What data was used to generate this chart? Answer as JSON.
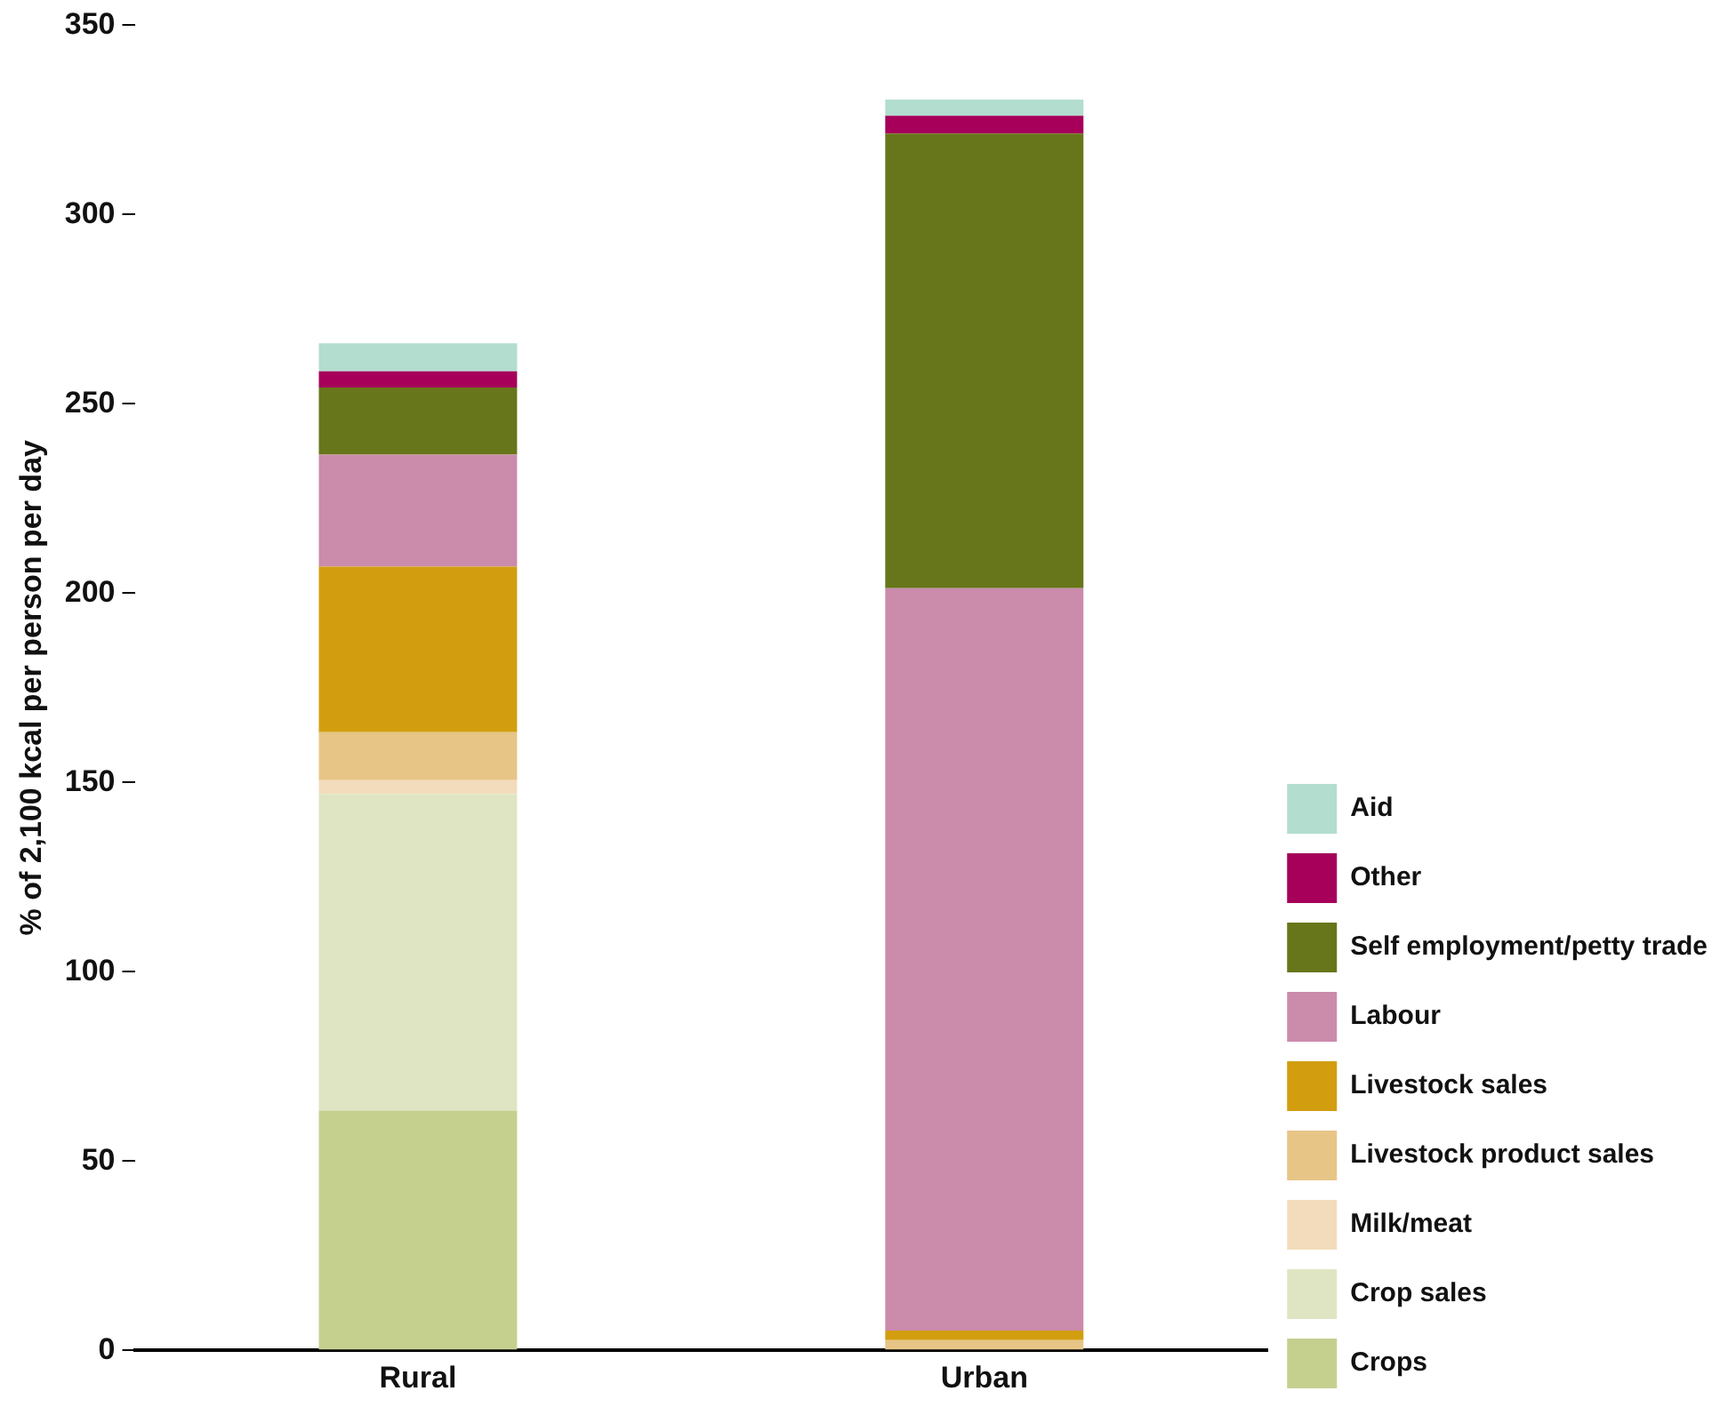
{
  "chart_data": {
    "type": "bar",
    "stacked": true,
    "ylabel": "% of 2,100 kcal per person per day",
    "categories": [
      "Rural",
      "Urban"
    ],
    "series": [
      {
        "name": "Crops",
        "color": "#c5d08f",
        "values": [
          63.3,
          0
        ]
      },
      {
        "name": "Crop sales",
        "color": "#dfe5c2",
        "values": [
          83.6,
          0
        ]
      },
      {
        "name": "Milk/meat",
        "color": "#f3dcbc",
        "values": [
          3.7,
          0
        ]
      },
      {
        "name": "Livestock product sales",
        "color": "#e7c587",
        "values": [
          12.7,
          2.7
        ]
      },
      {
        "name": "Livestock sales",
        "color": "#d29e10",
        "values": [
          43.7,
          2.5
        ]
      },
      {
        "name": "Labour",
        "color": "#cb8bab",
        "values": [
          29.6,
          196.1
        ]
      },
      {
        "name": "Self employment/petty trade",
        "color": "#67761a",
        "values": [
          17.7,
          120.1
        ]
      },
      {
        "name": "Other",
        "color": "#a6005a",
        "values": [
          4.3,
          4.7
        ]
      },
      {
        "name": "Aid",
        "color": "#b2ddcf",
        "values": [
          7.4,
          4.3
        ]
      }
    ],
    "ylim": [
      0,
      350
    ],
    "yticks": [
      0,
      50,
      100,
      150,
      200,
      250,
      300,
      350
    ],
    "grid": false,
    "legend": "right"
  }
}
